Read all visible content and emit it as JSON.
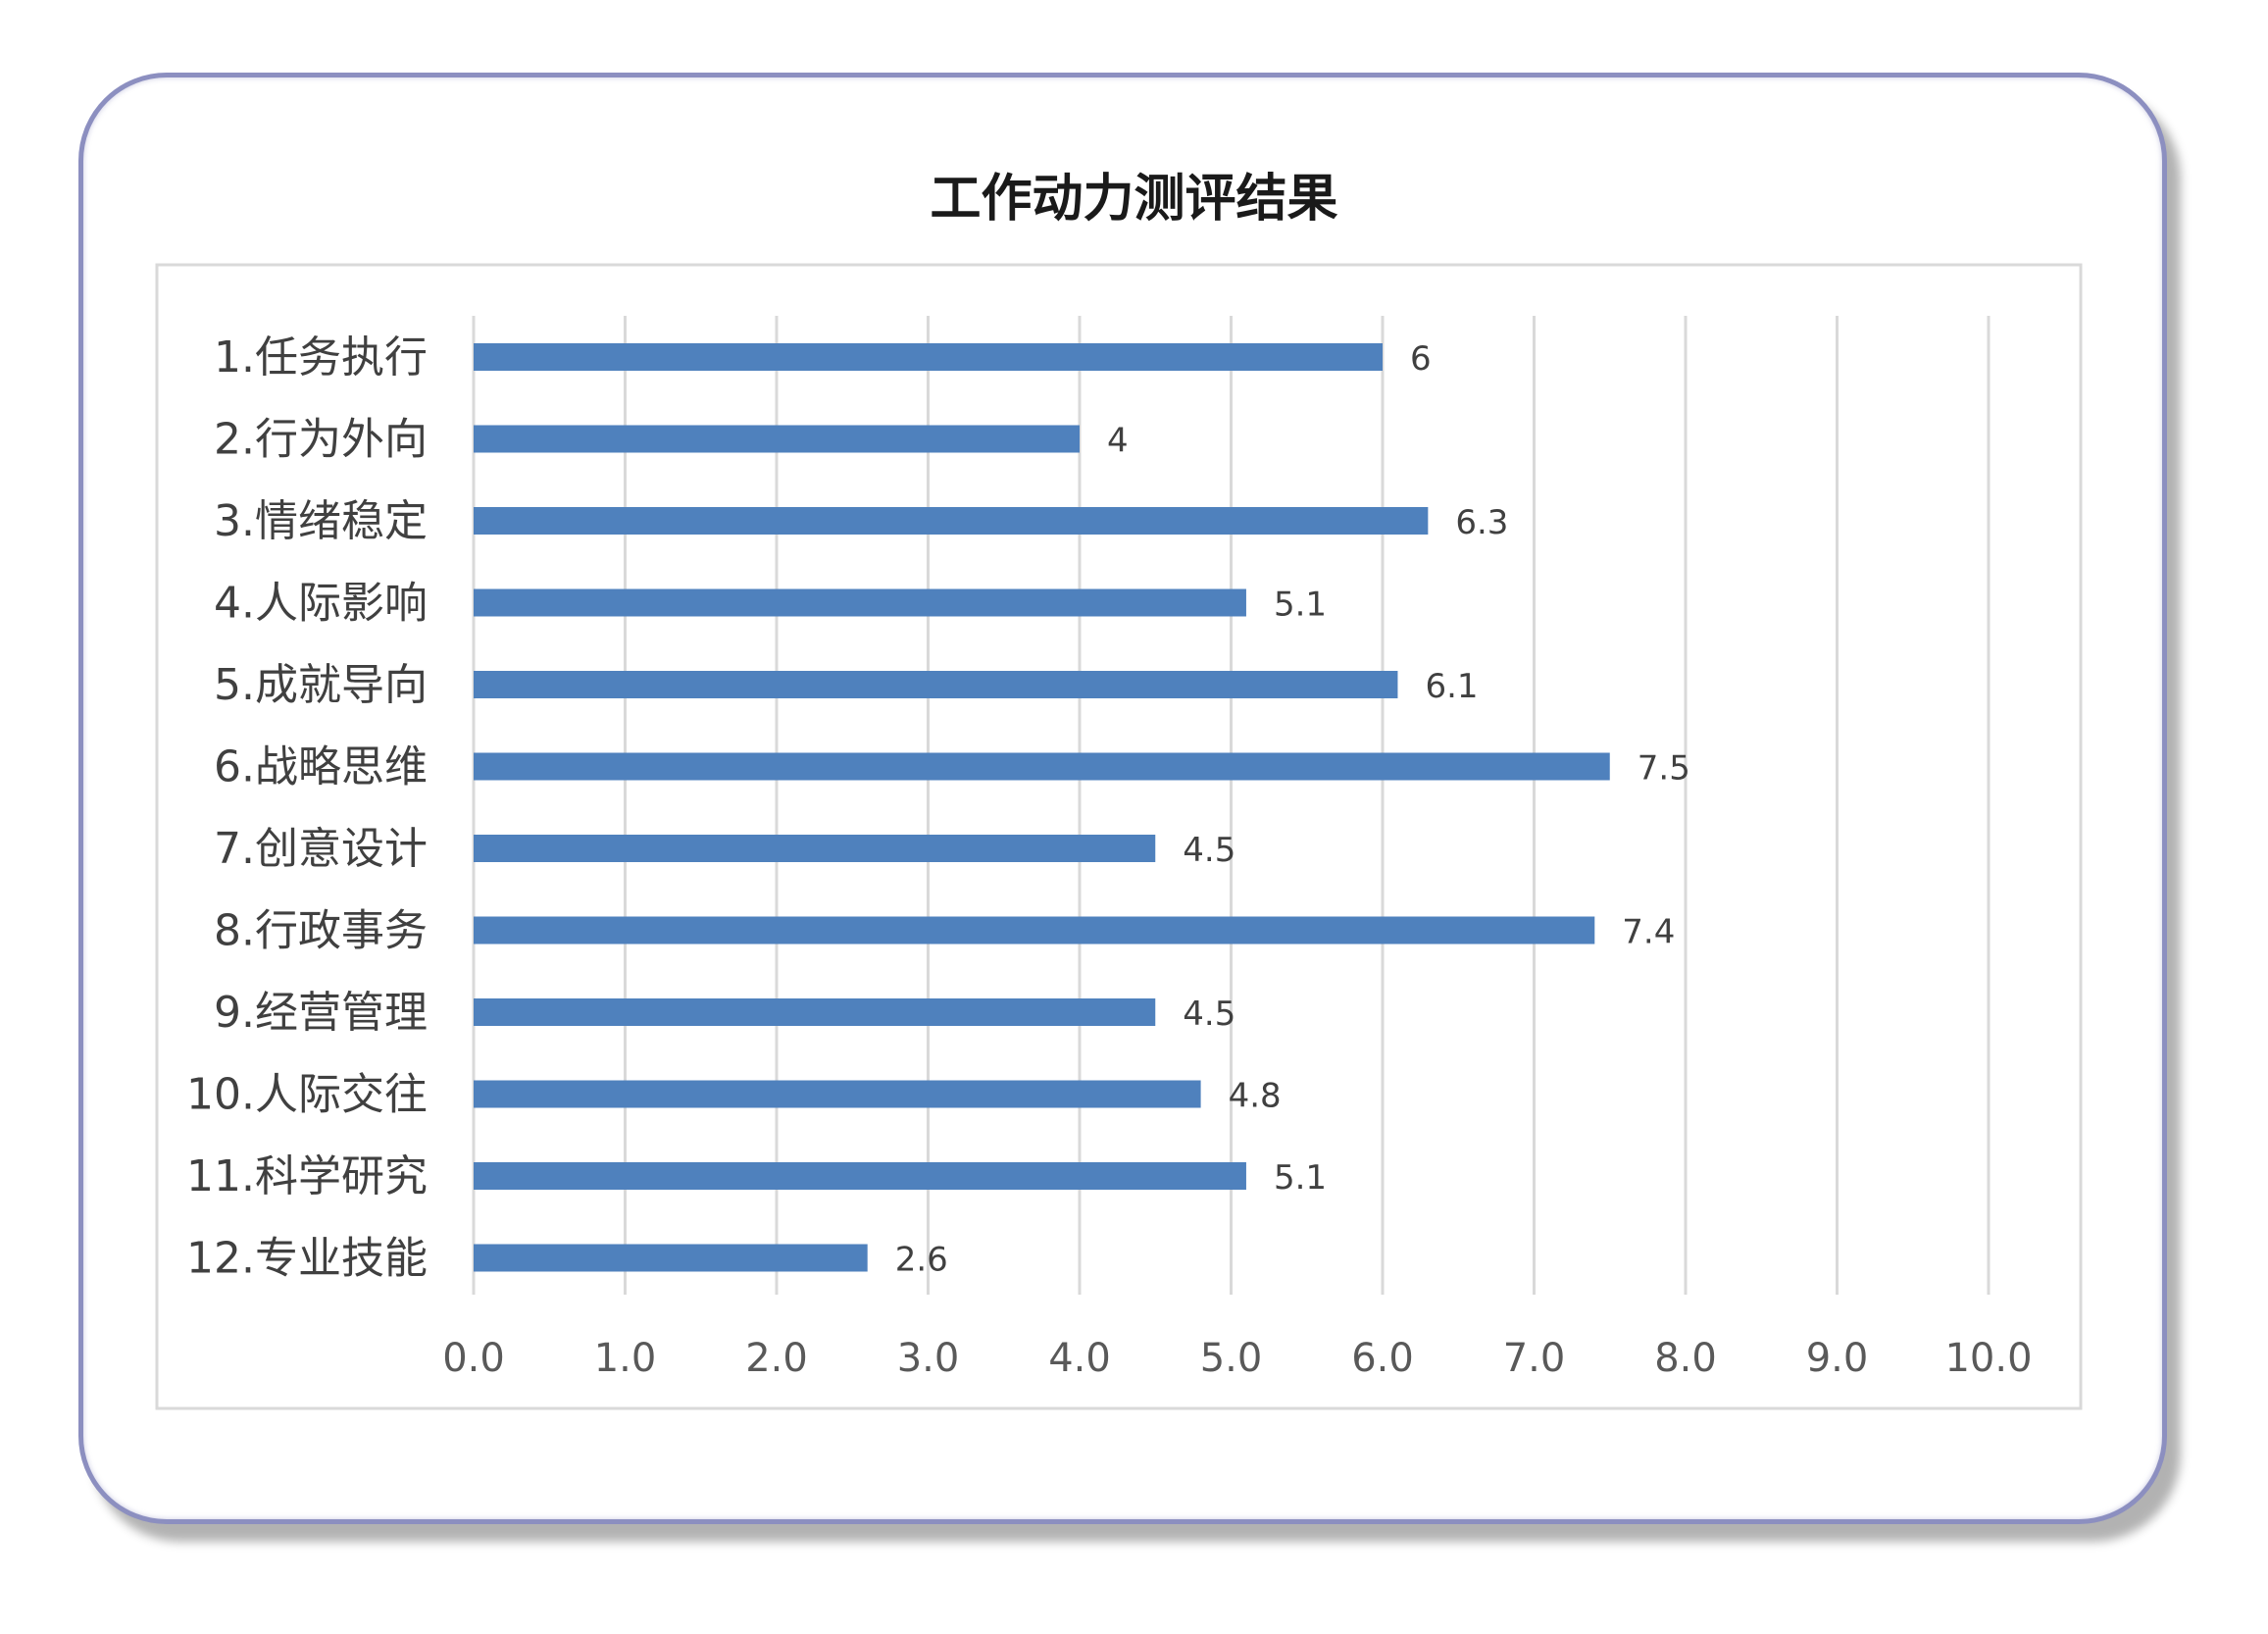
{
  "chart_data": {
    "type": "bar",
    "orientation": "horizontal",
    "title": "工作动力测评结果",
    "categories": [
      "1.任务执行",
      "2.行为外向",
      "3.情绪稳定",
      "4.人际影响",
      "5.成就导向",
      "6.战略思维",
      "7.创意设计",
      "8.行政事务",
      "9.经营管理",
      "10.人际交往",
      "11.科学研究",
      "12.专业技能"
    ],
    "values": [
      6,
      4,
      6.3,
      5.1,
      6.1,
      7.5,
      4.5,
      7.4,
      4.5,
      4.8,
      5.1,
      2.6
    ],
    "value_labels": [
      "6",
      "4",
      "6.3",
      "5.1",
      "6.1",
      "7.5",
      "4.5",
      "7.4",
      "4.5",
      "4.8",
      "5.1",
      "2.6"
    ],
    "xlim": [
      0,
      10
    ],
    "xticks": [
      "0.0",
      "1.0",
      "2.0",
      "3.0",
      "4.0",
      "5.0",
      "6.0",
      "7.0",
      "8.0",
      "9.0",
      "10.0"
    ],
    "grid": "vertical",
    "legend": "none",
    "bar_color": "#4f81bd"
  }
}
